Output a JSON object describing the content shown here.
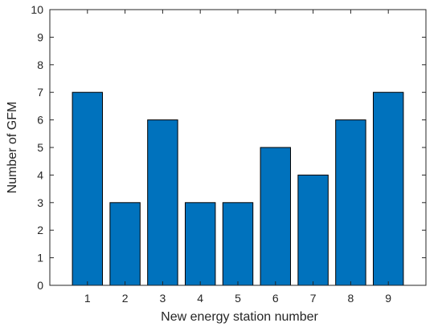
{
  "chart_data": {
    "type": "bar",
    "title": "",
    "xlabel": "New energy station number",
    "ylabel": "Number of GFM",
    "categories": [
      "1",
      "2",
      "3",
      "4",
      "5",
      "6",
      "7",
      "8",
      "9"
    ],
    "values": [
      7,
      3,
      6,
      3,
      3,
      5,
      4,
      6,
      7
    ],
    "ylim": [
      0,
      10
    ],
    "yticks": [
      "0",
      "1",
      "2",
      "3",
      "4",
      "5",
      "6",
      "7",
      "8",
      "9",
      "10"
    ],
    "grid": false,
    "bar_color": "#0072BD",
    "bar_edge_color": "#000000"
  }
}
